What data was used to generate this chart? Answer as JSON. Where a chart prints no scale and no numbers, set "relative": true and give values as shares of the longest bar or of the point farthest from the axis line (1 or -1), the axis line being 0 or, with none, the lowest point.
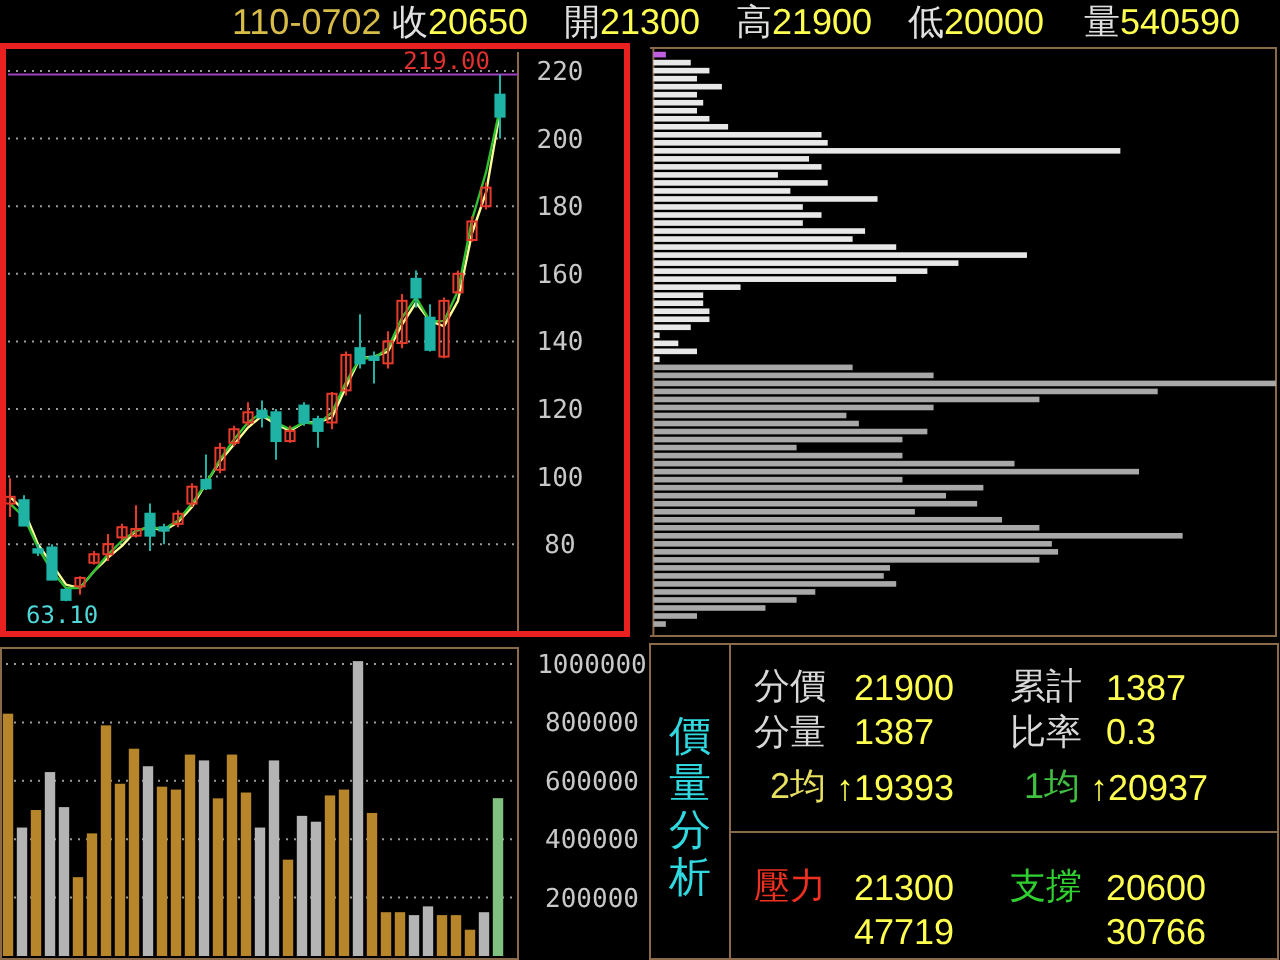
{
  "chart_data": [
    {
      "type": "candlestick",
      "annotations": [
        "110-0702",
        "收20650",
        "開21300",
        "高21900",
        "低20000",
        "量540590",
        {
          "text": "63.10",
          "y": 63.1
        }
      ],
      "categories": [
        null,
        null,
        null,
        null,
        null,
        null,
        null,
        null,
        null,
        null,
        null,
        null,
        null,
        null,
        null,
        null,
        null,
        null,
        null,
        null,
        null,
        null,
        null,
        null,
        null,
        null,
        null,
        null,
        null,
        null,
        null,
        null,
        null,
        null,
        null,
        null
      ],
      "ohlc": [
        [
          92,
          99.5,
          88,
          94
        ],
        [
          93,
          94.5,
          85.5,
          85.5
        ],
        [
          78.5,
          80,
          76.5,
          77.5
        ],
        [
          79,
          80,
          69.5,
          69.5
        ],
        [
          66.5,
          67,
          63.1,
          63.5
        ],
        [
          67.5,
          70.5,
          65,
          70
        ],
        [
          74.5,
          78,
          74,
          77
        ],
        [
          77,
          83,
          75,
          80
        ],
        [
          82,
          86,
          81,
          85
        ],
        [
          82.5,
          91.5,
          82,
          84.5
        ],
        [
          89,
          92,
          78,
          82.5
        ],
        [
          85,
          86,
          80,
          84
        ],
        [
          86,
          90,
          85,
          89
        ],
        [
          92,
          98,
          91,
          97
        ],
        [
          99,
          106.5,
          96,
          96.5
        ],
        [
          102,
          110,
          101,
          108.5
        ],
        [
          110,
          115,
          109,
          114
        ],
        [
          116,
          122,
          115,
          119
        ],
        [
          119.5,
          122.5,
          114.5,
          117.5
        ],
        [
          119,
          120,
          105,
          110.5
        ],
        [
          110.5,
          115,
          110,
          113.5
        ],
        [
          121,
          122,
          115,
          116
        ],
        [
          117,
          118,
          108.5,
          113.5
        ],
        [
          116,
          125,
          114,
          124.5
        ],
        [
          125.5,
          137,
          124,
          136
        ],
        [
          138,
          148,
          132,
          133.5
        ],
        [
          135.5,
          137,
          127.5,
          134.5
        ],
        [
          133.5,
          143,
          132,
          140
        ],
        [
          139.5,
          154,
          138,
          152
        ],
        [
          158.5,
          161,
          150,
          153
        ],
        [
          147,
          151,
          137,
          137.5
        ],
        [
          135.5,
          153,
          135,
          152
        ],
        [
          154.5,
          161,
          154,
          160
        ],
        [
          170,
          177,
          169.5,
          175.5
        ],
        [
          180,
          187,
          179,
          185.5
        ],
        [
          213,
          219,
          200,
          206.5
        ]
      ],
      "series": [
        {
          "type": "line",
          "color": "#ffff99",
          "values": [
            94,
            90,
            80,
            74,
            68,
            67,
            72,
            76,
            79.5,
            84,
            85,
            84,
            86.5,
            91,
            98,
            104.5,
            109.5,
            114.5,
            118,
            115.5,
            113.5,
            116,
            116,
            117.5,
            126.5,
            135,
            135.5,
            137,
            145,
            151.5,
            146,
            144.5,
            152,
            172,
            184,
            208
          ]
        },
        {
          "type": "line",
          "color": "#30c030",
          "values": [
            92,
            88,
            79,
            72,
            67,
            67,
            72,
            77,
            81,
            84,
            85,
            84.5,
            87,
            92,
            98,
            105,
            111,
            116,
            119,
            116,
            114,
            116,
            115.5,
            119,
            128,
            135,
            135,
            138,
            147,
            153,
            146,
            146,
            155,
            176,
            190,
            209
          ]
        }
      ],
      "ylim": [
        54,
        228
      ],
      "yticks": [
        80,
        100,
        120,
        140,
        160,
        180,
        200,
        220
      ],
      "grid": "y",
      "ref_lines": [
        {
          "axis": "y",
          "value": 219,
          "label": "219.00",
          "color": "#a040c0"
        }
      ]
    },
    {
      "type": "bar",
      "categories": [
        null,
        null,
        null,
        null,
        null,
        null,
        null,
        null,
        null,
        null,
        null,
        null,
        null,
        null,
        null,
        null,
        null,
        null,
        null,
        null,
        null,
        null,
        null,
        null,
        null,
        null,
        null,
        null,
        null,
        null,
        null,
        null,
        null,
        null,
        null,
        null
      ],
      "values": [
        830000,
        440000,
        500000,
        630000,
        510000,
        270000,
        420000,
        790000,
        590000,
        710000,
        650000,
        580000,
        570000,
        690000,
        670000,
        540000,
        690000,
        560000,
        440000,
        670000,
        330000,
        480000,
        460000,
        550000,
        570000,
        1010000,
        490000,
        150000,
        150000,
        140000,
        170000,
        140000,
        140000,
        90000,
        150000,
        540590
      ],
      "colors": [
        "#b8862a",
        "#b4b4b4",
        "#b8862a",
        "#b4b4b4",
        "#b4b4b4",
        "#b8862a",
        "#b8862a",
        "#b8862a",
        "#b8862a",
        "#b8862a",
        "#b4b4b4",
        "#b8862a",
        "#b8862a",
        "#b8862a",
        "#b4b4b4",
        "#b8862a",
        "#b8862a",
        "#b8862a",
        "#b4b4b4",
        "#b4b4b4",
        "#b8862a",
        "#b4b4b4",
        "#b4b4b4",
        "#b8862a",
        "#b8862a",
        "#b4b4b4",
        "#b8862a",
        "#b8862a",
        "#b8862a",
        "#b4b4b4",
        "#b4b4b4",
        "#b8862a",
        "#b8862a",
        "#b8862a",
        "#b4b4b4",
        "#80c080"
      ],
      "ylim": [
        0,
        1055000
      ],
      "yticks": [
        200000,
        400000,
        600000,
        800000,
        1000000
      ],
      "grid": "y"
    },
    {
      "type": "bar",
      "orientation": "horizontal",
      "relative": true,
      "categories": [
        null,
        null,
        null,
        null,
        null,
        null,
        null,
        null,
        null,
        null,
        null,
        null,
        null,
        null,
        null,
        null,
        null,
        null,
        null,
        null,
        null,
        null,
        null,
        null,
        null,
        null,
        null,
        null,
        null,
        null,
        null,
        null,
        null,
        null,
        null,
        null,
        null,
        null,
        null,
        null,
        null,
        null,
        null,
        null,
        null,
        null,
        null,
        null,
        null,
        null,
        null,
        null,
        null,
        null,
        null,
        null,
        null,
        null,
        null,
        null,
        null,
        null,
        null,
        null,
        null,
        null,
        null,
        null,
        null,
        null,
        null,
        null
      ],
      "values": [
        0.02,
        0.06,
        0.09,
        0.07,
        0.11,
        0.07,
        0.08,
        0.07,
        0.09,
        0.12,
        0.27,
        0.28,
        0.75,
        0.25,
        0.27,
        0.2,
        0.28,
        0.22,
        0.36,
        0.24,
        0.27,
        0.24,
        0.34,
        0.32,
        0.39,
        0.6,
        0.49,
        0.44,
        0.39,
        0.14,
        0.08,
        0.08,
        0.09,
        0.09,
        0.06,
        0.01,
        0.04,
        0.07,
        0.01,
        0.32,
        0.45,
        1,
        0.81,
        0.62,
        0.45,
        0.31,
        0.33,
        0.44,
        0.4,
        0.23,
        0.4,
        0.58,
        0.78,
        0.4,
        0.53,
        0.47,
        0.52,
        0.42,
        0.56,
        0.62,
        0.85,
        0.64,
        0.65,
        0.62,
        0.38,
        0.37,
        0.39,
        0.26,
        0.23,
        0.18,
        0.07,
        0.02
      ],
      "colors": [
        "#c060e0",
        "#e8e8e8",
        "#e8e8e8",
        "#e8e8e8",
        "#e8e8e8",
        "#e8e8e8",
        "#e8e8e8",
        "#e8e8e8",
        "#e8e8e8",
        "#e8e8e8",
        "#e8e8e8",
        "#e8e8e8",
        "#e8e8e8",
        "#e8e8e8",
        "#e8e8e8",
        "#e8e8e8",
        "#e8e8e8",
        "#e8e8e8",
        "#e8e8e8",
        "#e8e8e8",
        "#e8e8e8",
        "#e8e8e8",
        "#e8e8e8",
        "#e8e8e8",
        "#e8e8e8",
        "#e8e8e8",
        "#e8e8e8",
        "#e8e8e8",
        "#e8e8e8",
        "#e8e8e8",
        "#e8e8e8",
        "#e8e8e8",
        "#e8e8e8",
        "#e8e8e8",
        "#e8e8e8",
        "#e8e8e8",
        "#e8e8e8",
        "#e8e8e8",
        "#e8e8e8",
        "#a8a8a8",
        "#a8a8a8",
        "#a8a8a8",
        "#a8a8a8",
        "#a8a8a8",
        "#a8a8a8",
        "#a8a8a8",
        "#a8a8a8",
        "#a8a8a8",
        "#a8a8a8",
        "#a8a8a8",
        "#a8a8a8",
        "#a8a8a8",
        "#a8a8a8",
        "#a8a8a8",
        "#a8a8a8",
        "#a8a8a8",
        "#a8a8a8",
        "#a8a8a8",
        "#a8a8a8",
        "#a8a8a8",
        "#a8a8a8",
        "#a8a8a8",
        "#a8a8a8",
        "#a8a8a8",
        "#a8a8a8",
        "#a8a8a8",
        "#a8a8a8",
        "#a8a8a8",
        "#a8a8a8",
        "#a8a8a8",
        "#a8a8a8",
        "#a8a8a8"
      ]
    },
    {
      "type": "other",
      "title": "價量分析",
      "annotations": [
        "分價",
        "21900",
        "累計",
        "1387",
        "分量",
        "1387",
        "比率",
        "0.3",
        "2均",
        "↑19393",
        "1均",
        "↑20937",
        "壓力",
        "21300",
        "47719",
        "支撐",
        "20600",
        "30766"
      ]
    }
  ]
}
